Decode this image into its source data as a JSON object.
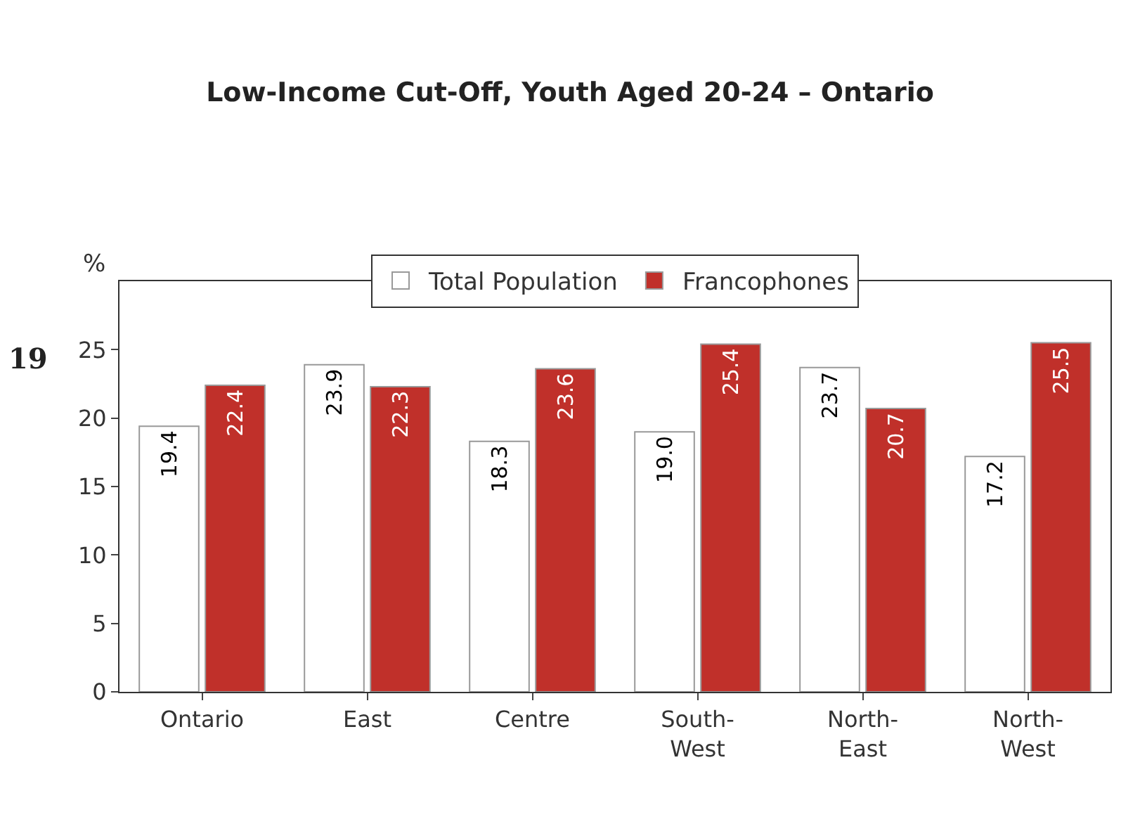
{
  "chart_data": {
    "type": "bar",
    "title": "Low-Income Cut-Off, Youth Aged 20-24 – Ontario",
    "ylabel": "%",
    "categories": [
      "Ontario",
      "East",
      "Centre",
      "South-West",
      "North-East",
      "North-West"
    ],
    "series": [
      {
        "name": "Total Population",
        "color": "#ffffff",
        "values": [
          19.4,
          23.9,
          18.3,
          19.0,
          23.7,
          17.2
        ],
        "value_labels": [
          "19.4",
          "23.9",
          "18.3",
          "19.0",
          "23.7",
          "17.2"
        ]
      },
      {
        "name": "Francophones",
        "color": "#c0302a",
        "values": [
          22.4,
          22.3,
          23.6,
          25.4,
          20.7,
          25.5
        ],
        "value_labels": [
          "22.4",
          "22.3",
          "23.6",
          "25.4",
          "20.7",
          "25.5"
        ]
      }
    ],
    "ylim": [
      0,
      30
    ],
    "yticks": [
      0,
      5,
      10,
      15,
      20,
      25
    ],
    "legend": "top",
    "annotations": [
      "19"
    ]
  }
}
